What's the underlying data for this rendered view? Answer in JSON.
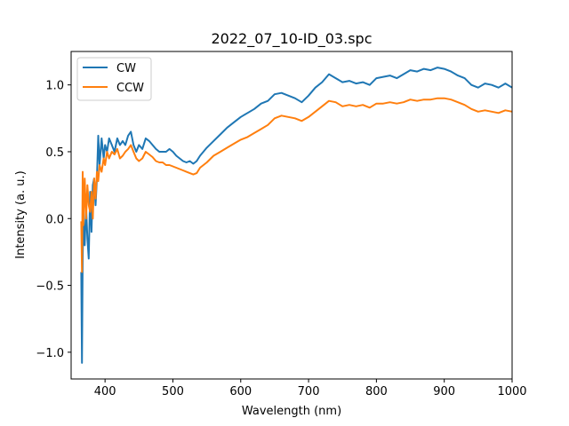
{
  "chart_data": {
    "type": "line",
    "title": "2022_07_10-ID_03.spc",
    "xlabel": "Wavelength (nm)",
    "ylabel": "Intensity (a. u.)",
    "xlim": [
      350,
      1000
    ],
    "ylim": [
      -1.2,
      1.25
    ],
    "xticks": [
      400,
      500,
      600,
      700,
      800,
      900,
      1000
    ],
    "yticks": [
      -1.0,
      -0.5,
      0.0,
      0.5,
      1.0
    ],
    "ytick_labels": [
      "−1.0",
      "−0.5",
      "0.0",
      "0.5",
      "1.0"
    ],
    "grid": false,
    "legend_position": "top-left",
    "series": [
      {
        "name": "CW",
        "color": "#1f77b4",
        "x": [
          365,
          366,
          367,
          368,
          370,
          372,
          374,
          376,
          378,
          380,
          382,
          384,
          386,
          388,
          390,
          392,
          395,
          398,
          400,
          403,
          406,
          410,
          414,
          418,
          422,
          426,
          430,
          434,
          438,
          442,
          446,
          450,
          455,
          460,
          465,
          470,
          475,
          480,
          485,
          490,
          495,
          500,
          505,
          510,
          515,
          520,
          525,
          530,
          535,
          540,
          550,
          560,
          570,
          580,
          590,
          600,
          610,
          620,
          630,
          640,
          650,
          660,
          670,
          680,
          690,
          700,
          710,
          720,
          730,
          740,
          750,
          760,
          770,
          780,
          790,
          800,
          810,
          820,
          830,
          840,
          850,
          860,
          870,
          880,
          890,
          900,
          910,
          920,
          930,
          940,
          950,
          960,
          970,
          980,
          990,
          1000
        ],
        "y": [
          -0.4,
          -1.08,
          -0.3,
          0.0,
          -0.2,
          0.1,
          -0.15,
          -0.3,
          0.2,
          -0.1,
          0.25,
          0.3,
          0.1,
          0.3,
          0.62,
          0.4,
          0.6,
          0.45,
          0.55,
          0.5,
          0.6,
          0.55,
          0.5,
          0.6,
          0.55,
          0.58,
          0.55,
          0.62,
          0.65,
          0.55,
          0.5,
          0.55,
          0.52,
          0.6,
          0.58,
          0.55,
          0.52,
          0.5,
          0.5,
          0.5,
          0.52,
          0.5,
          0.47,
          0.45,
          0.43,
          0.42,
          0.43,
          0.41,
          0.43,
          0.47,
          0.53,
          0.58,
          0.63,
          0.68,
          0.72,
          0.76,
          0.79,
          0.82,
          0.86,
          0.88,
          0.93,
          0.94,
          0.92,
          0.9,
          0.87,
          0.92,
          0.98,
          1.02,
          1.08,
          1.05,
          1.02,
          1.03,
          1.01,
          1.02,
          1.0,
          1.05,
          1.06,
          1.07,
          1.05,
          1.08,
          1.11,
          1.1,
          1.12,
          1.11,
          1.13,
          1.12,
          1.1,
          1.07,
          1.05,
          1.0,
          0.98,
          1.01,
          1.0,
          0.98,
          1.01,
          0.98
        ]
      },
      {
        "name": "CCW",
        "color": "#ff7f0e",
        "x": [
          365,
          366,
          367,
          368,
          370,
          372,
          374,
          376,
          378,
          380,
          382,
          384,
          386,
          388,
          390,
          392,
          395,
          398,
          400,
          403,
          406,
          410,
          414,
          418,
          422,
          426,
          430,
          434,
          438,
          442,
          446,
          450,
          455,
          460,
          465,
          470,
          475,
          480,
          485,
          490,
          495,
          500,
          505,
          510,
          515,
          520,
          525,
          530,
          535,
          540,
          550,
          560,
          570,
          580,
          590,
          600,
          610,
          620,
          630,
          640,
          650,
          660,
          670,
          680,
          690,
          700,
          710,
          720,
          730,
          740,
          750,
          760,
          770,
          780,
          790,
          800,
          810,
          820,
          830,
          840,
          850,
          860,
          870,
          880,
          890,
          900,
          910,
          920,
          930,
          940,
          950,
          960,
          970,
          980,
          990,
          1000
        ],
        "y": [
          -0.02,
          -0.4,
          0.35,
          -0.05,
          0.3,
          0.0,
          0.25,
          0.1,
          0.05,
          0.2,
          0.0,
          0.3,
          0.15,
          0.35,
          0.28,
          0.4,
          0.35,
          0.45,
          0.4,
          0.5,
          0.45,
          0.5,
          0.48,
          0.52,
          0.45,
          0.47,
          0.5,
          0.52,
          0.55,
          0.5,
          0.45,
          0.43,
          0.45,
          0.5,
          0.48,
          0.46,
          0.43,
          0.42,
          0.42,
          0.4,
          0.4,
          0.39,
          0.38,
          0.37,
          0.36,
          0.35,
          0.34,
          0.33,
          0.34,
          0.38,
          0.42,
          0.47,
          0.5,
          0.53,
          0.56,
          0.59,
          0.61,
          0.64,
          0.67,
          0.7,
          0.75,
          0.77,
          0.76,
          0.75,
          0.73,
          0.76,
          0.8,
          0.84,
          0.88,
          0.87,
          0.84,
          0.85,
          0.84,
          0.85,
          0.83,
          0.86,
          0.86,
          0.87,
          0.86,
          0.87,
          0.89,
          0.88,
          0.89,
          0.89,
          0.9,
          0.9,
          0.89,
          0.87,
          0.85,
          0.82,
          0.8,
          0.81,
          0.8,
          0.79,
          0.81,
          0.8
        ]
      }
    ]
  }
}
